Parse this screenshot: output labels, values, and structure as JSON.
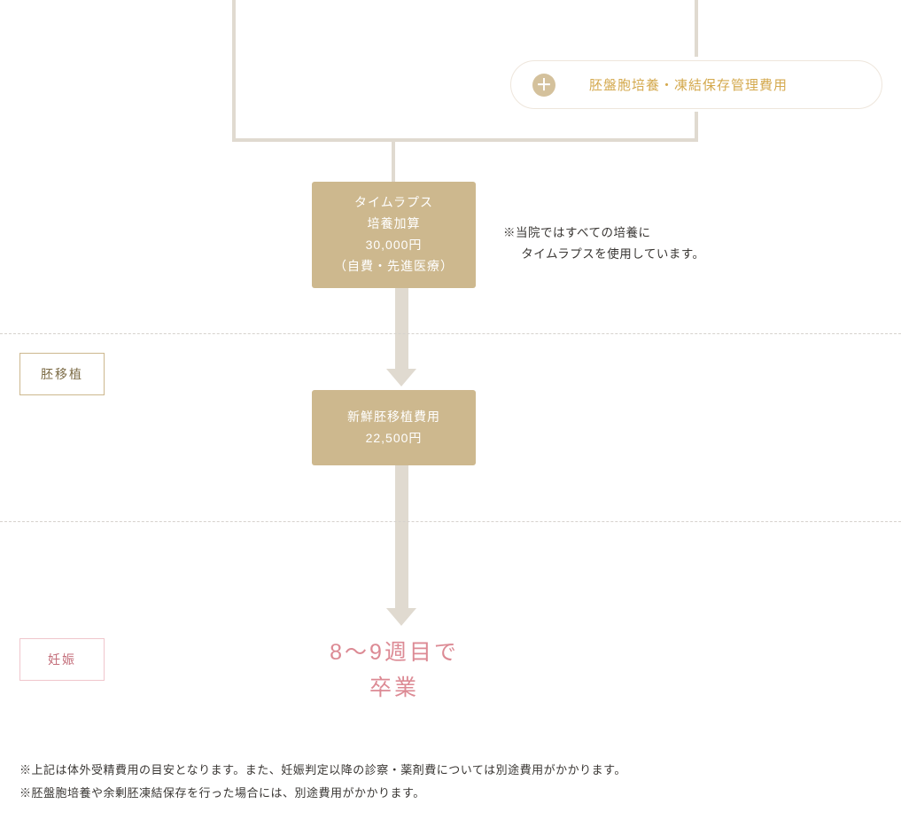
{
  "colors": {
    "connector": "#e0dad0",
    "gold_box_bg": "#cdb88e",
    "gold_box_text": "#ffffff",
    "pill_bg": "#ffffff",
    "pill_border": "#eee6dc",
    "pill_text": "#d4a94e",
    "plus_bg": "#d4c19c",
    "dashed": "#d6d2cd",
    "stage_embryo_border": "#cdb88e",
    "stage_embryo_text": "#7b6a44",
    "stage_pregnancy_border": "#f0c6cc",
    "stage_pregnancy_text": "#c46f7b",
    "grad_text": "#dc8a94",
    "body_text": "#3a3734"
  },
  "pill": {
    "plus_symbol": "＋",
    "label": "胚盤胞培養・凍結保存管理費用"
  },
  "timelapse_box": {
    "line1": "タイムラプス",
    "line2": "培養加算",
    "line3": "30,000円",
    "line4": "（自費・先進医療）"
  },
  "side_note": {
    "line1": "※当院ではすべての培養に",
    "line2": "タイムラプスを使用しています。"
  },
  "fresh_box": {
    "line1": "新鮮胚移植費用",
    "line2": "22,500円"
  },
  "stages": {
    "embryo": "胚移植",
    "pregnancy": "妊娠"
  },
  "graduation": {
    "line1": "8～9週目で",
    "line2": "卒業"
  },
  "footnotes": {
    "line1": "※上記は体外受精費用の目安となります。また、妊娠判定以降の診察・薬剤費については別途費用がかかります。",
    "line2": "※胚盤胞培養や余剰胚凍結保存を行った場合には、別途費用がかかります。"
  }
}
